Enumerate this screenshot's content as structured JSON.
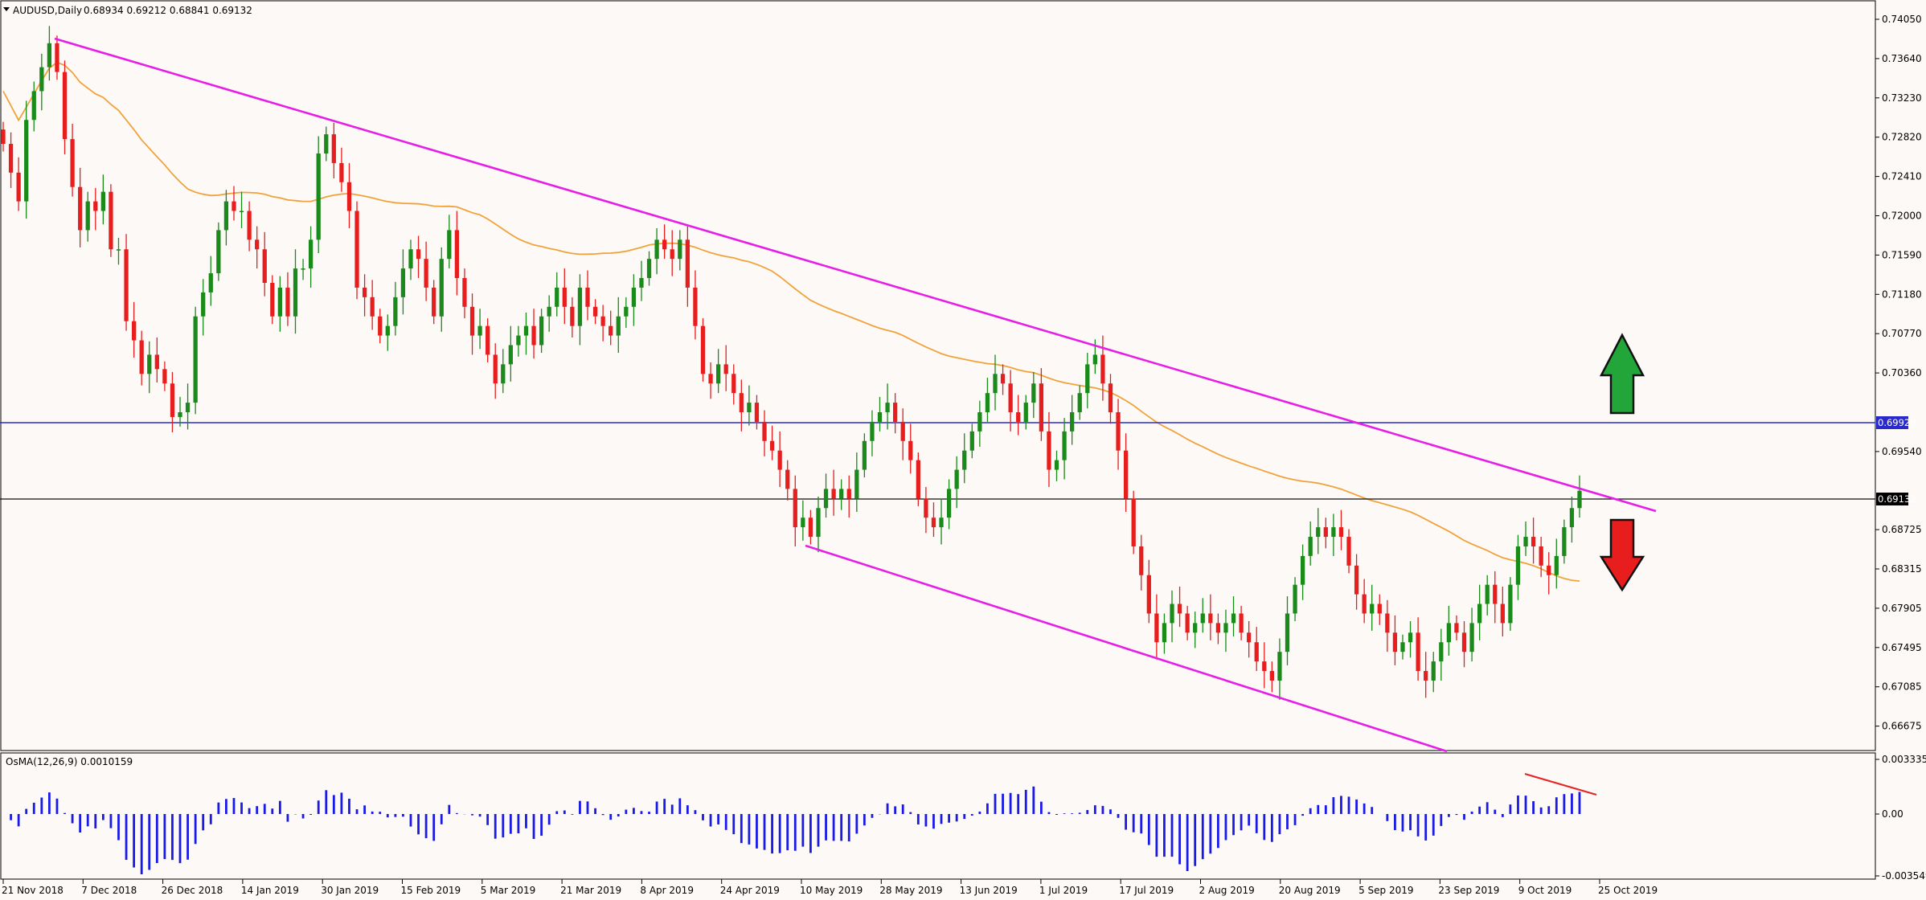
{
  "header": {
    "symbol_label": "AUDUSD,Daily",
    "ohlc": "0.68934 0.69212 0.68841 0.69132"
  },
  "osma": {
    "label": "OsMA(12,26,9) 0.0010159",
    "y_ticks": [
      "0.0033358",
      "0.00",
      "-0.003549"
    ]
  },
  "price_axis": {
    "ticks": [
      "0.74050",
      "0.73640",
      "0.73230",
      "0.72820",
      "0.72410",
      "0.72000",
      "0.71590",
      "0.71180",
      "0.70770",
      "0.70360",
      "0.69540",
      "0.68725",
      "0.68315",
      "0.67905",
      "0.67495",
      "0.67085",
      "0.66675"
    ],
    "level_blue": "0.69929",
    "level_current": "0.69132"
  },
  "time_axis": {
    "labels": [
      "21 Nov 2018",
      "7 Dec 2018",
      "26 Dec 2018",
      "14 Jan 2019",
      "30 Jan 2019",
      "15 Feb 2019",
      "5 Mar 2019",
      "21 Mar 2019",
      "8 Apr 2019",
      "24 Apr 2019",
      "10 May 2019",
      "28 May 2019",
      "13 Jun 2019",
      "1 Jul 2019",
      "17 Jul 2019",
      "2 Aug 2019",
      "20 Aug 2019",
      "5 Sep 2019",
      "23 Sep 2019",
      "9 Oct 2019",
      "25 Oct 2019"
    ]
  },
  "colors": {
    "up_candle": "#1a8a1a",
    "down_candle": "#e81e1e",
    "trendline": "#e61ee6",
    "moving_average": "#f2a23a",
    "horizontal_blue": "#2a2acc",
    "osma_bars": "#1a1ae6",
    "divergence": "#e62626",
    "arrow_up": "#22a63a",
    "arrow_down": "#e81e1e"
  },
  "chart_data": {
    "type": "candlestick",
    "symbol": "AUDUSD",
    "timeframe": "Daily",
    "y_ticks": [
      0.7405,
      0.7364,
      0.7323,
      0.7282,
      0.7241,
      0.72,
      0.7159,
      0.7118,
      0.7077,
      0.7036,
      0.6954,
      0.68725,
      0.68315,
      0.67905,
      0.67495,
      0.67085,
      0.66675
    ],
    "horizontal_lines": [
      0.69929,
      0.69132
    ],
    "close_series": [
      0.7275,
      0.7245,
      0.7215,
      0.73,
      0.733,
      0.7355,
      0.738,
      0.735,
      0.728,
      0.723,
      0.7185,
      0.7215,
      0.7205,
      0.7225,
      0.7165,
      0.7165,
      0.709,
      0.707,
      0.7035,
      0.7055,
      0.704,
      0.7025,
      0.699,
      0.6995,
      0.7005,
      0.7095,
      0.712,
      0.714,
      0.7185,
      0.7215,
      0.7205,
      0.7205,
      0.7175,
      0.7165,
      0.713,
      0.7095,
      0.7125,
      0.7095,
      0.7145,
      0.7145,
      0.7175,
      0.7265,
      0.7285,
      0.7255,
      0.7235,
      0.7205,
      0.7125,
      0.7115,
      0.7095,
      0.7075,
      0.7085,
      0.7115,
      0.7145,
      0.7165,
      0.7155,
      0.7125,
      0.7095,
      0.7155,
      0.7185,
      0.7135,
      0.7105,
      0.7075,
      0.7085,
      0.7055,
      0.7025,
      0.7045,
      0.7065,
      0.7075,
      0.7085,
      0.7065,
      0.7095,
      0.7105,
      0.7125,
      0.7105,
      0.7085,
      0.7125,
      0.7105,
      0.7095,
      0.7085,
      0.7075,
      0.7095,
      0.7105,
      0.7125,
      0.7135,
      0.7155,
      0.7175,
      0.7165,
      0.7155,
      0.7175,
      0.7125,
      0.7085,
      0.7035,
      0.7025,
      0.7045,
      0.7035,
      0.7015,
      0.6995,
      0.7005,
      0.6985,
      0.6965,
      0.6955,
      0.6935,
      0.6915,
      0.6875,
      0.6885,
      0.6865,
      0.6895,
      0.6915,
      0.6905,
      0.6915,
      0.6905,
      0.6935,
      0.6965,
      0.6985,
      0.6995,
      0.7005,
      0.6985,
      0.6965,
      0.6945,
      0.6905,
      0.6885,
      0.6875,
      0.6885,
      0.6915,
      0.6935,
      0.6955,
      0.6975,
      0.6995,
      0.7015,
      0.7035,
      0.7025,
      0.6995,
      0.6985,
      0.7005,
      0.7025,
      0.6975,
      0.6935,
      0.6945,
      0.6975,
      0.6995,
      0.7015,
      0.7045,
      0.7055,
      0.7025,
      0.6995,
      0.6955,
      0.6905,
      0.6855,
      0.6825,
      0.6785,
      0.6755,
      0.6775,
      0.6795,
      0.6785,
      0.6765,
      0.6775,
      0.6785,
      0.6775,
      0.6765,
      0.6775,
      0.6785,
      0.6765,
      0.6755,
      0.6735,
      0.6725,
      0.6715,
      0.6745,
      0.6785,
      0.6815,
      0.6845,
      0.6865,
      0.6875,
      0.6865,
      0.6875,
      0.6865,
      0.6835,
      0.6805,
      0.6785,
      0.6795,
      0.6785,
      0.6765,
      0.6745,
      0.6755,
      0.6765,
      0.6725,
      0.6715,
      0.6735,
      0.6755,
      0.6775,
      0.6765,
      0.6745,
      0.6775,
      0.6795,
      0.6815,
      0.6795,
      0.6775,
      0.6815,
      0.6855,
      0.6865,
      0.6855,
      0.6835,
      0.6825,
      0.6845,
      0.6875,
      0.6895,
      0.6913
    ],
    "indicator": {
      "name": "OsMA(12,26,9)",
      "value": 0.0010159,
      "y_ticks": [
        0.0033358,
        0.0,
        -0.003549
      ]
    }
  }
}
